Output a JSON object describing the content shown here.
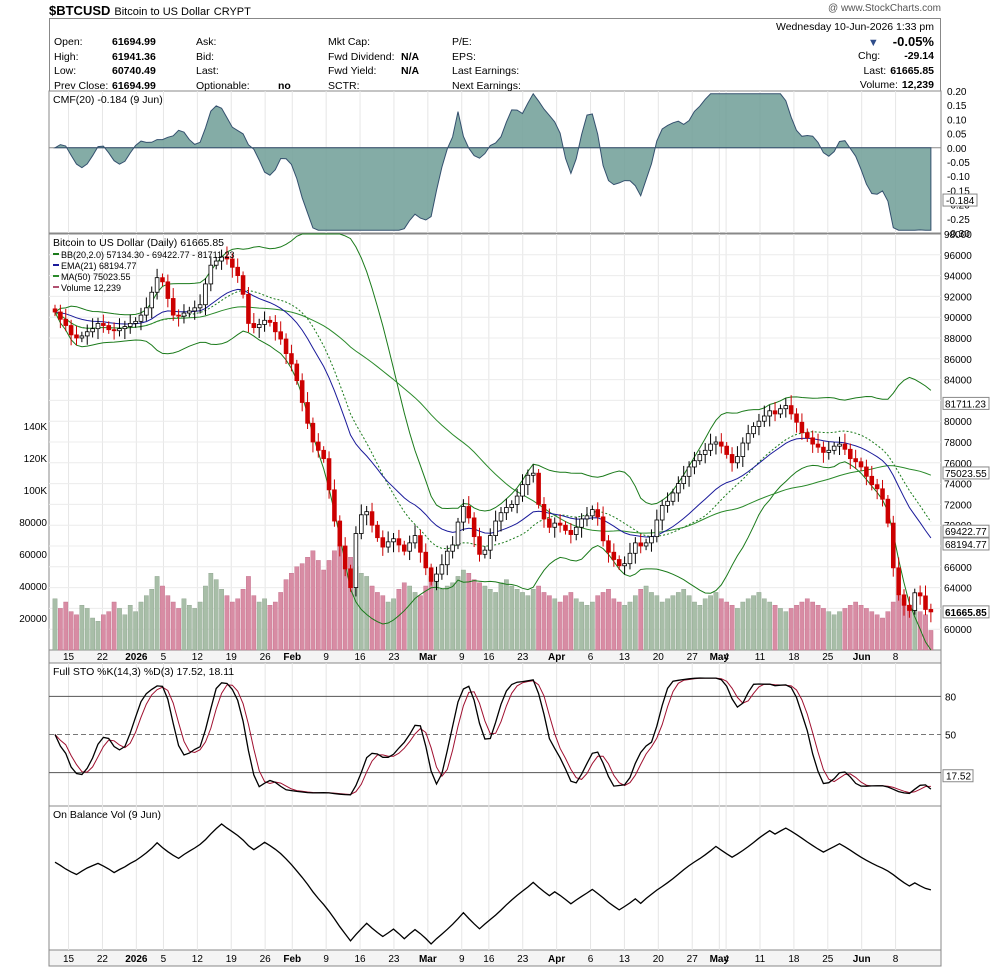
{
  "header": {
    "symbol": "$BTCUSD",
    "name": "Bitcoin to US Dollar",
    "type": "CRYPT",
    "brand": "@ www.StockCharts.com"
  },
  "quote": {
    "date": "Wednesday  10-Jun-2026  1:33 pm",
    "change_pct": "-0.05%",
    "rows": [
      [
        {
          "label": "Open:",
          "value": "61694.99"
        },
        {
          "label": "Ask:",
          "value": ""
        },
        {
          "label": "Mkt Cap:",
          "value": ""
        },
        {
          "label": "P/E:",
          "value": ""
        }
      ],
      [
        {
          "label": "High:",
          "value": "61941.36"
        },
        {
          "label": "Bid:",
          "value": ""
        },
        {
          "label": "Fwd Dividend:",
          "value": "N/A"
        },
        {
          "label": "EPS:",
          "value": ""
        }
      ],
      [
        {
          "label": "Low:",
          "value": "60740.49"
        },
        {
          "label": "Last:",
          "value": ""
        },
        {
          "label": "Fwd Yield:",
          "value": "N/A"
        },
        {
          "label": "Last Earnings:",
          "value": ""
        }
      ],
      [
        {
          "label": "Prev Close:",
          "value": "61694.99"
        },
        {
          "label": "Optionable:",
          "value": "no"
        },
        {
          "label": "SCTR:",
          "value": ""
        },
        {
          "label": "Next Earnings:",
          "value": ""
        }
      ]
    ],
    "right": [
      {
        "label": "Chg:",
        "value": "-29.14"
      },
      {
        "label": "Last:",
        "value": "61665.85"
      },
      {
        "label": "Volume:",
        "value": "12,239"
      }
    ]
  },
  "colors": {
    "up": "#000000",
    "down": "#cc0000",
    "bb": "#1a7a1a",
    "ema": "#1a1a9a",
    "ma": "#2a8a2a",
    "cmf": "#6f9e97",
    "vol_up": "#a8bea8",
    "vol_down": "#d88ca4",
    "stoK": "#000000",
    "stoD": "#a01030",
    "obv": "#000000"
  },
  "chart_data": {
    "type": "candlestick",
    "dates": [
      "Jan 15",
      "Jan 22",
      "2026",
      "Jan 5",
      "Jan 12",
      "Jan 19",
      "Jan 26",
      "Feb",
      "Feb 9",
      "Feb 16",
      "Feb 23",
      "Mar",
      "Mar 9",
      "Mar 16",
      "Mar 23",
      "Apr",
      "Apr 6",
      "Apr 13",
      "Apr 20",
      "Apr 27",
      "May",
      "May 4",
      "May 11",
      "May 18",
      "May 25",
      "Jun",
      "Jun 8"
    ],
    "x_tick_labels": [
      "15",
      "22",
      "2026",
      "5",
      "12",
      "19",
      "26",
      "Feb",
      "9",
      "16",
      "23",
      "Mar",
      "9",
      "16",
      "23",
      "Apr",
      "6",
      "13",
      "20",
      "27",
      "May",
      "4",
      "11",
      "18",
      "25",
      "Jun",
      "8"
    ],
    "price_panel": {
      "title": "Bitcoin to US Dollar (Daily) 61665.85",
      "legend": [
        "BB(20,2.0) 57134.30 - 69422.77 - 81711.23",
        "EMA(21) 68194.77",
        "MA(50) 75023.55",
        "Volume 12,239"
      ],
      "ylim": [
        58000,
        98000
      ],
      "y_ticks": [
        60000,
        62000,
        64000,
        66000,
        68000,
        70000,
        72000,
        74000,
        76000,
        78000,
        80000,
        82000,
        84000,
        86000,
        88000,
        90000,
        92000,
        94000,
        96000,
        98000
      ],
      "last_labels": [
        {
          "text": "81711.23",
          "value": 81711.23
        },
        {
          "text": "75023.55",
          "value": 75023.55
        },
        {
          "text": "69422.77",
          "value": 69422.77
        },
        {
          "text": "68194.77",
          "value": 68194.77
        },
        {
          "text": "61665.85",
          "value": 61665.85
        }
      ],
      "close": [
        90500,
        89800,
        89200,
        88300,
        88000,
        88200,
        88600,
        88900,
        89400,
        89200,
        88800,
        88700,
        88900,
        89100,
        89400,
        89600,
        90200,
        90900,
        92400,
        93800,
        93400,
        91800,
        90200,
        90100,
        90400,
        90600,
        90900,
        91200,
        93200,
        95000,
        95400,
        95800,
        95600,
        94800,
        94000,
        92200,
        89400,
        89000,
        89300,
        89700,
        89500,
        88600,
        87900,
        86500,
        85500,
        83900,
        81800,
        79800,
        78000,
        77200,
        76400,
        73400,
        70400,
        68000,
        65800,
        64000,
        69200,
        71000,
        71300,
        70000,
        68800,
        67900,
        68400,
        68700,
        68100,
        67500,
        68300,
        69000,
        67400,
        65900,
        64600,
        65300,
        66200,
        67500,
        68100,
        70300,
        71800,
        70700,
        68900,
        67200,
        67600,
        69000,
        70400,
        71200,
        71700,
        72000,
        72800,
        73900,
        74800,
        75000,
        72000,
        70600,
        69800,
        70200,
        70000,
        69500,
        69100,
        69800,
        70600,
        70900,
        71500,
        70800,
        68500,
        67400,
        66700,
        66100,
        66300,
        67300,
        68300,
        68000,
        68300,
        68900,
        70500,
        71900,
        72300,
        73100,
        74000,
        74700,
        75600,
        76200,
        76800,
        77200,
        77800,
        78000,
        77600,
        76800,
        76000,
        76600,
        77900,
        78800,
        79500,
        80000,
        80500,
        81000,
        80700,
        81200,
        81500,
        80700,
        79900,
        78900,
        78400,
        77800,
        77500,
        77000,
        77200,
        77600,
        77800,
        77300,
        76400,
        76100,
        75600,
        74700,
        73900,
        73500,
        72500,
        70200,
        65900,
        63300,
        62300,
        61800,
        63500,
        63200,
        61900,
        61665
      ],
      "volume": [
        32000,
        26000,
        30000,
        24000,
        22000,
        28000,
        26000,
        20000,
        18000,
        22000,
        24000,
        30000,
        26000,
        22000,
        28000,
        24000,
        30000,
        34000,
        38000,
        46000,
        40000,
        34000,
        30000,
        26000,
        32000,
        28000,
        26000,
        30000,
        40000,
        48000,
        44000,
        38000,
        34000,
        30000,
        32000,
        38000,
        46000,
        34000,
        30000,
        32000,
        28000,
        30000,
        36000,
        44000,
        48000,
        52000,
        54000,
        58000,
        62000,
        56000,
        50000,
        56000,
        62000,
        66000,
        60000,
        58000,
        52000,
        48000,
        46000,
        40000,
        36000,
        34000,
        30000,
        32000,
        38000,
        42000,
        40000,
        36000,
        34000,
        40000,
        46000,
        44000,
        38000,
        40000,
        42000,
        46000,
        50000,
        48000,
        44000,
        42000,
        40000,
        38000,
        36000,
        42000,
        44000,
        40000,
        38000,
        36000,
        34000,
        38000,
        40000,
        36000,
        34000,
        32000,
        30000,
        34000,
        36000,
        32000,
        30000,
        28000,
        30000,
        34000,
        36000,
        38000,
        32000,
        30000,
        28000,
        30000,
        34000,
        38000,
        40000,
        36000,
        34000,
        30000,
        32000,
        34000,
        36000,
        38000,
        34000,
        30000,
        28000,
        32000,
        34000,
        36000,
        32000,
        30000,
        28000,
        26000,
        30000,
        32000,
        34000,
        36000,
        32000,
        30000,
        28000,
        26000,
        24000,
        26000,
        28000,
        30000,
        32000,
        30000,
        28000,
        26000,
        24000,
        22000,
        24000,
        26000,
        28000,
        30000,
        28000,
        26000,
        24000,
        22000,
        20000,
        24000,
        30000,
        34000,
        32000,
        28000,
        26000,
        24000,
        22000,
        12239
      ]
    },
    "cmf_panel": {
      "title": "CMF(20) -0.184 (9 Jun)",
      "ylim": [
        -0.3,
        0.2
      ],
      "y_ticks": [
        0.2,
        0.15,
        0.1,
        0.05,
        0.0,
        -0.05,
        -0.1,
        -0.15,
        -0.2,
        -0.25,
        -0.3
      ],
      "last_label": "-0.184",
      "last_value": -0.184
    },
    "sto_panel": {
      "title": "Full STO %K(14,3) %D(3) 17.52, 18.11",
      "ylim": [
        0,
        100
      ],
      "y_ticks": [
        80,
        50,
        20
      ],
      "last_label": "17.52",
      "last_value": 17.52
    },
    "obv_panel": {
      "title": "On Balance Vol (9 Jun)"
    },
    "volume_axis": {
      "ticks": [
        20000,
        40000,
        60000,
        80000,
        100000,
        120000,
        140000
      ],
      "labels": [
        "20000",
        "40000",
        "60000",
        "80000",
        "100K",
        "120K",
        "140K"
      ]
    }
  }
}
